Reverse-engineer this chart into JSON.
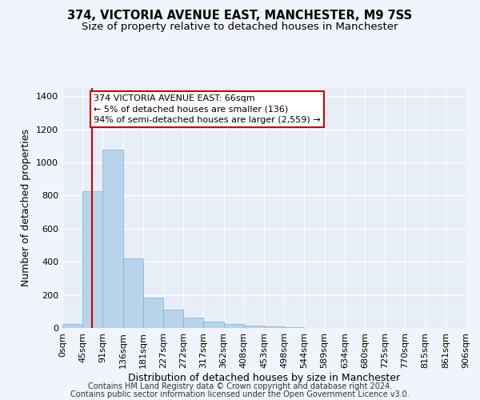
{
  "title": "374, VICTORIA AVENUE EAST, MANCHESTER, M9 7SS",
  "subtitle": "Size of property relative to detached houses in Manchester",
  "xlabel": "Distribution of detached houses by size in Manchester",
  "ylabel": "Number of detached properties",
  "bar_values": [
    25,
    825,
    1080,
    420,
    185,
    110,
    65,
    40,
    25,
    15,
    10,
    5,
    0,
    0,
    0,
    0,
    0,
    0,
    0,
    0
  ],
  "bar_color": "#b8d4ea",
  "bar_edge_color": "#7aafd4",
  "x_labels": [
    "0sqm",
    "45sqm",
    "91sqm",
    "136sqm",
    "181sqm",
    "227sqm",
    "272sqm",
    "317sqm",
    "362sqm",
    "408sqm",
    "453sqm",
    "498sqm",
    "544sqm",
    "589sqm",
    "634sqm",
    "680sqm",
    "725sqm",
    "770sqm",
    "815sqm",
    "861sqm",
    "906sqm"
  ],
  "ylim": [
    0,
    1450
  ],
  "yticks": [
    0,
    200,
    400,
    600,
    800,
    1000,
    1200,
    1400
  ],
  "red_line_x": 1.47,
  "annotation_text": "374 VICTORIA AVENUE EAST: 66sqm\n← 5% of detached houses are smaller (136)\n94% of semi-detached houses are larger (2,559) →",
  "footer_line1": "Contains HM Land Registry data © Crown copyright and database right 2024.",
  "footer_line2": "Contains public sector information licensed under the Open Government Licence v3.0.",
  "bg_color": "#f0f4fc",
  "plot_bg_color": "#e8eef8",
  "grid_color": "#ffffff",
  "annotation_box_color": "#ffffff",
  "annotation_box_edge": "#cc0000",
  "red_line_color": "#cc0000",
  "title_fontsize": 10.5,
  "subtitle_fontsize": 9.5,
  "ylabel_fontsize": 9,
  "xlabel_fontsize": 9,
  "tick_fontsize": 8,
  "annotation_fontsize": 8,
  "footer_fontsize": 7
}
